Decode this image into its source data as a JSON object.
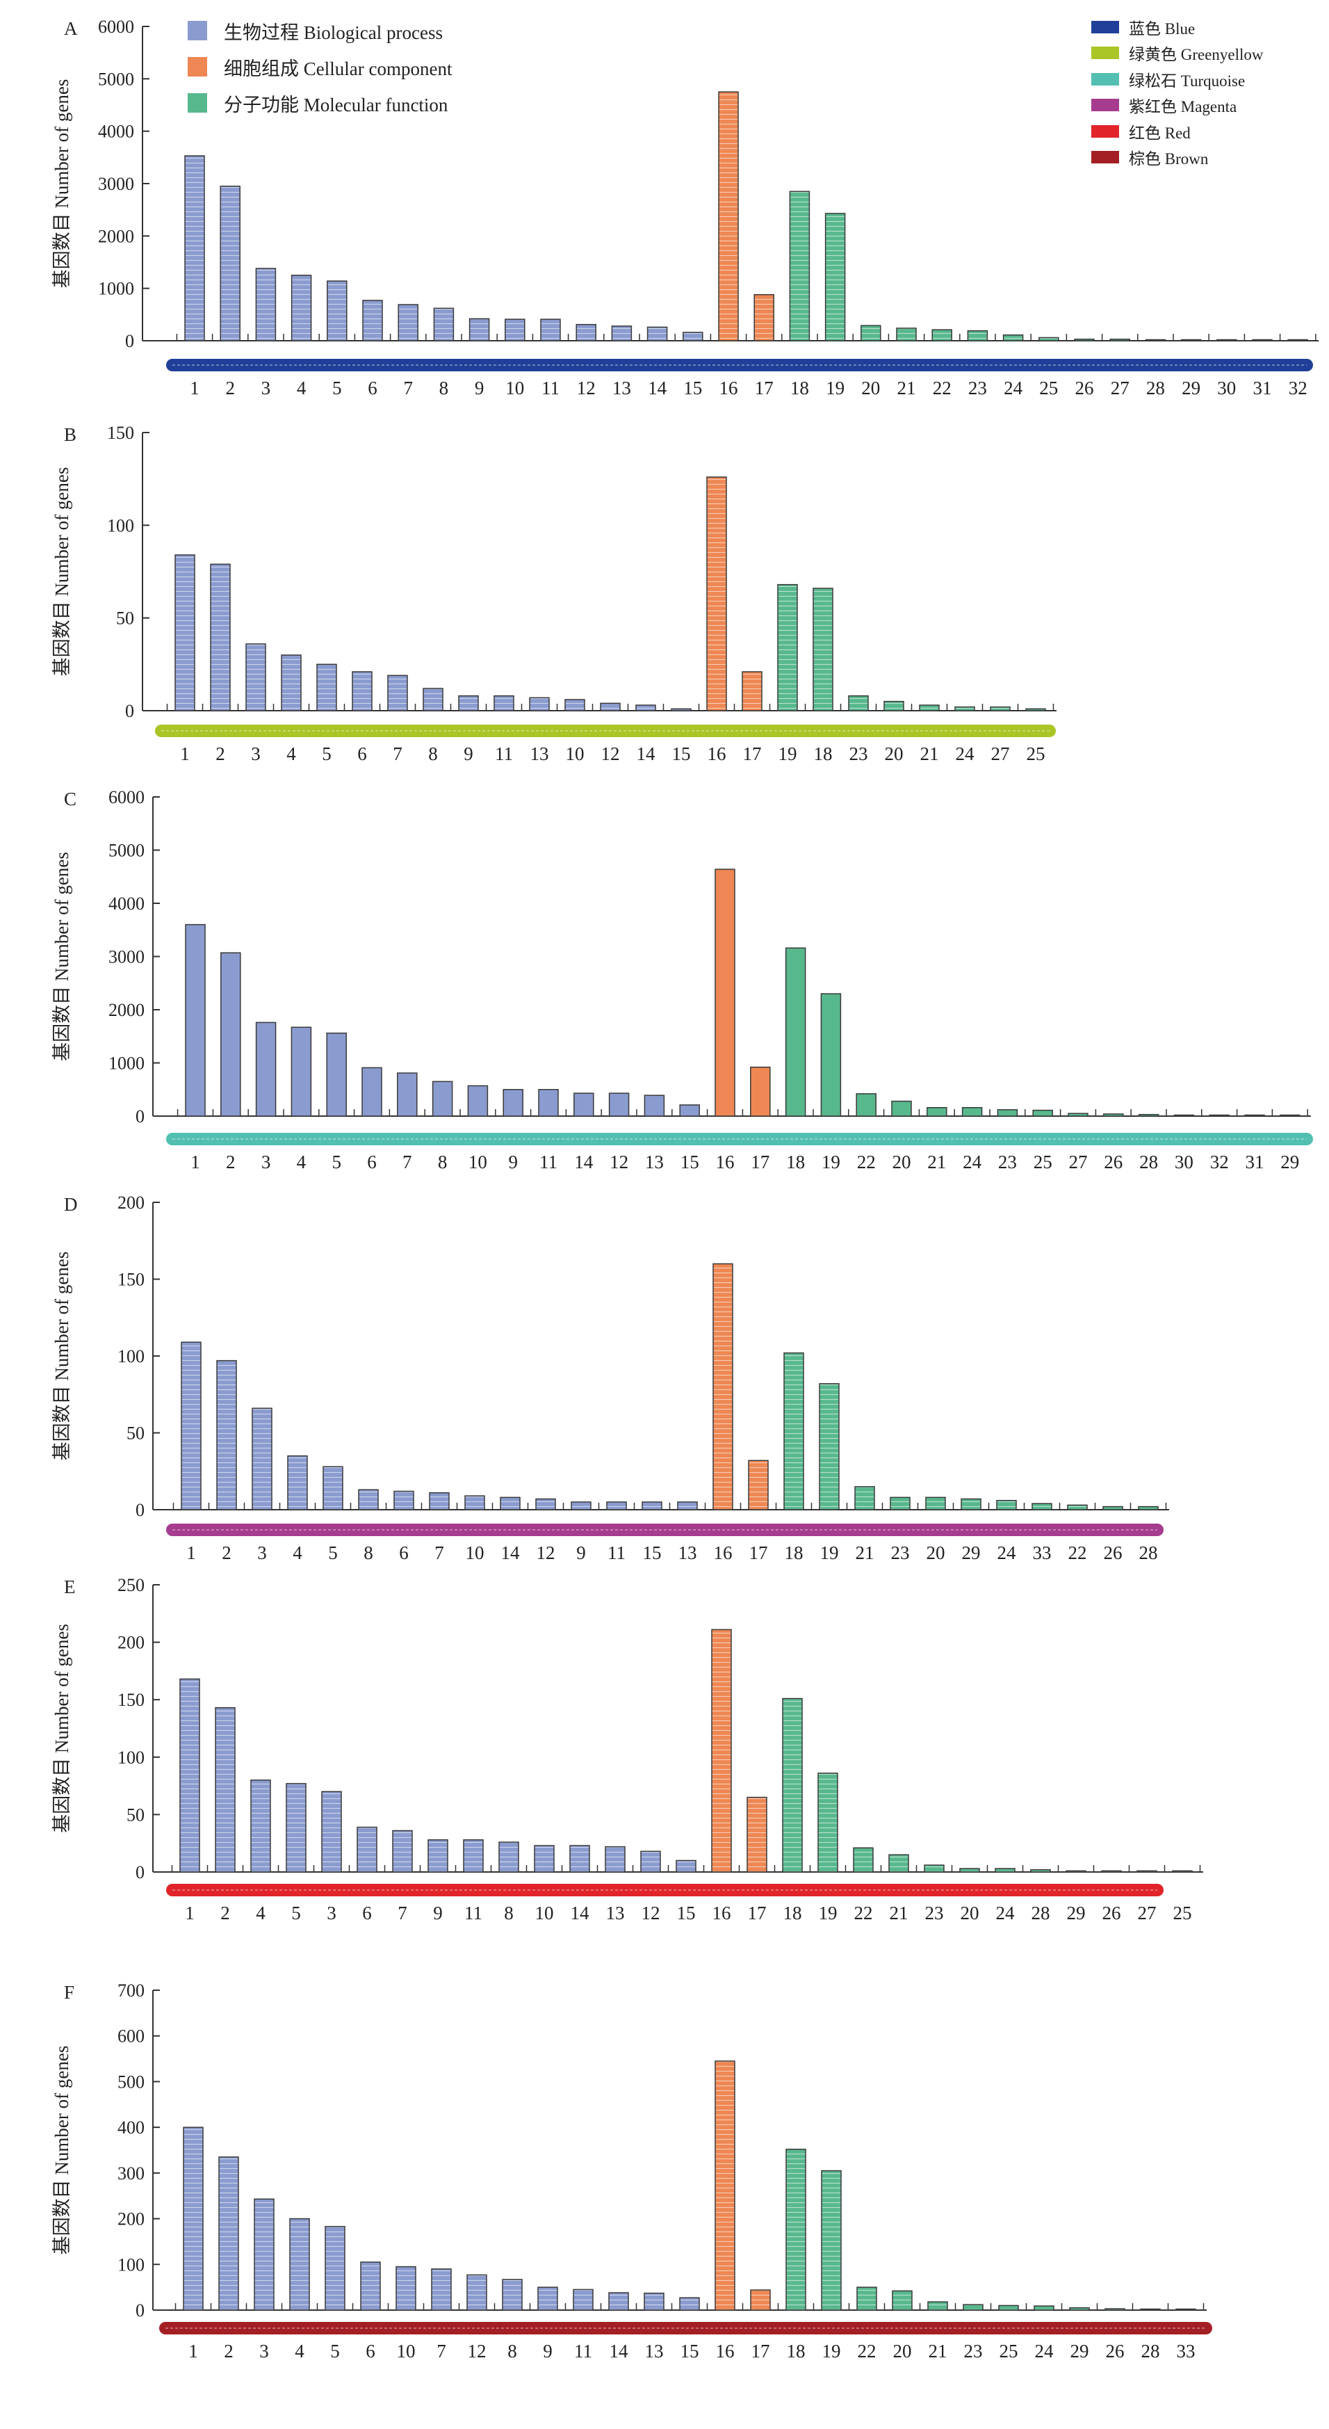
{
  "chart_data": [
    {
      "type": "bar",
      "panel_label": "A",
      "ylabel": "基因数目 Number of genes",
      "ylim": [
        0,
        6000
      ],
      "yticks": [
        0,
        1000,
        2000,
        3000,
        4000,
        5000,
        6000
      ],
      "module_color": "#1f3f98",
      "categories": [
        "1",
        "2",
        "3",
        "4",
        "5",
        "6",
        "7",
        "8",
        "9",
        "10",
        "11",
        "12",
        "13",
        "14",
        "15",
        "16",
        "17",
        "18",
        "19",
        "20",
        "21",
        "22",
        "23",
        "24",
        "25",
        "26",
        "27",
        "28",
        "29",
        "30",
        "31",
        "32"
      ],
      "values": [
        3530,
        2950,
        1380,
        1250,
        1140,
        770,
        690,
        620,
        420,
        410,
        410,
        310,
        280,
        260,
        160,
        4750,
        880,
        2850,
        2430,
        290,
        240,
        210,
        190,
        110,
        60,
        30,
        30,
        20,
        20,
        10,
        10,
        10
      ],
      "groups": [
        "bp",
        "bp",
        "bp",
        "bp",
        "bp",
        "bp",
        "bp",
        "bp",
        "bp",
        "bp",
        "bp",
        "bp",
        "bp",
        "bp",
        "bp",
        "cc",
        "cc",
        "mf",
        "mf",
        "mf",
        "mf",
        "mf",
        "mf",
        "mf",
        "mf",
        "mf",
        "mf",
        "mf",
        "mf",
        "mf",
        "mf",
        "mf"
      ],
      "hatched": true
    },
    {
      "type": "bar",
      "panel_label": "B",
      "ylabel": "基因数目 Number of genes",
      "ylim": [
        0,
        150
      ],
      "yticks": [
        0,
        50,
        100,
        150
      ],
      "module_color": "#a9c526",
      "categories": [
        "1",
        "2",
        "3",
        "4",
        "5",
        "6",
        "7",
        "8",
        "9",
        "11",
        "13",
        "10",
        "12",
        "14",
        "15",
        "16",
        "17",
        "19",
        "18",
        "23",
        "20",
        "21",
        "24",
        "27",
        "25"
      ],
      "values": [
        84,
        79,
        36,
        30,
        25,
        21,
        19,
        12,
        8,
        8,
        7,
        6,
        4,
        3,
        1,
        126,
        21,
        68,
        66,
        8,
        5,
        3,
        2,
        2,
        1
      ],
      "groups": [
        "bp",
        "bp",
        "bp",
        "bp",
        "bp",
        "bp",
        "bp",
        "bp",
        "bp",
        "bp",
        "bp",
        "bp",
        "bp",
        "bp",
        "bp",
        "cc",
        "cc",
        "mf",
        "mf",
        "mf",
        "mf",
        "mf",
        "mf",
        "mf",
        "mf"
      ],
      "hatched": true
    },
    {
      "type": "bar",
      "panel_label": "C",
      "ylabel": "基因数目 Number of genes",
      "ylim": [
        0,
        6000
      ],
      "yticks": [
        0,
        1000,
        2000,
        3000,
        4000,
        5000,
        6000
      ],
      "module_color": "#52bfb2",
      "categories": [
        "1",
        "2",
        "3",
        "4",
        "5",
        "6",
        "7",
        "8",
        "10",
        "9",
        "11",
        "14",
        "12",
        "13",
        "15",
        "16",
        "17",
        "18",
        "19",
        "22",
        "20",
        "21",
        "24",
        "23",
        "25",
        "27",
        "26",
        "28",
        "30",
        "32",
        "31",
        "29"
      ],
      "values": [
        3600,
        3070,
        1760,
        1670,
        1560,
        910,
        810,
        650,
        570,
        500,
        500,
        430,
        430,
        390,
        210,
        4640,
        920,
        3160,
        2300,
        420,
        280,
        160,
        160,
        120,
        110,
        50,
        40,
        30,
        10,
        10,
        10,
        10
      ],
      "groups": [
        "bp",
        "bp",
        "bp",
        "bp",
        "bp",
        "bp",
        "bp",
        "bp",
        "bp",
        "bp",
        "bp",
        "bp",
        "bp",
        "bp",
        "bp",
        "cc",
        "cc",
        "mf",
        "mf",
        "mf",
        "mf",
        "mf",
        "mf",
        "mf",
        "mf",
        "mf",
        "mf",
        "mf",
        "mf",
        "mf",
        "mf",
        "mf"
      ],
      "hatched": false
    },
    {
      "type": "bar",
      "panel_label": "D",
      "ylabel": "基因数目 Number of genes",
      "ylim": [
        0,
        200
      ],
      "yticks": [
        0,
        50,
        100,
        150,
        200
      ],
      "module_color": "#a63c8e",
      "categories": [
        "1",
        "2",
        "3",
        "4",
        "5",
        "8",
        "6",
        "7",
        "10",
        "14",
        "12",
        "9",
        "11",
        "15",
        "13",
        "16",
        "17",
        "18",
        "19",
        "21",
        "23",
        "20",
        "29",
        "24",
        "33",
        "22",
        "26",
        "28"
      ],
      "values": [
        109,
        97,
        66,
        35,
        28,
        13,
        12,
        11,
        9,
        8,
        7,
        5,
        5,
        5,
        5,
        160,
        32,
        102,
        82,
        15,
        8,
        8,
        7,
        6,
        4,
        3,
        2,
        2
      ],
      "groups": [
        "bp",
        "bp",
        "bp",
        "bp",
        "bp",
        "bp",
        "bp",
        "bp",
        "bp",
        "bp",
        "bp",
        "bp",
        "bp",
        "bp",
        "bp",
        "cc",
        "cc",
        "mf",
        "mf",
        "mf",
        "mf",
        "mf",
        "mf",
        "mf",
        "mf",
        "mf",
        "mf",
        "mf"
      ],
      "hatched": true
    },
    {
      "type": "bar",
      "panel_label": "E",
      "ylabel": "基因数目 Number of genes",
      "ylim": [
        0,
        250
      ],
      "yticks": [
        0,
        50,
        100,
        150,
        200,
        250
      ],
      "module_color": "#e0242a",
      "categories": [
        "1",
        "2",
        "4",
        "5",
        "3",
        "6",
        "7",
        "9",
        "11",
        "8",
        "10",
        "14",
        "13",
        "12",
        "15",
        "16",
        "17",
        "18",
        "19",
        "22",
        "21",
        "23",
        "20",
        "24",
        "28",
        "29",
        "26",
        "27",
        "25"
      ],
      "values": [
        168,
        143,
        80,
        77,
        70,
        39,
        36,
        28,
        28,
        26,
        23,
        23,
        22,
        18,
        10,
        211,
        65,
        151,
        86,
        21,
        15,
        6,
        3,
        3,
        2,
        1,
        1,
        1,
        1
      ],
      "groups": [
        "bp",
        "bp",
        "bp",
        "bp",
        "bp",
        "bp",
        "bp",
        "bp",
        "bp",
        "bp",
        "bp",
        "bp",
        "bp",
        "bp",
        "bp",
        "cc",
        "cc",
        "mf",
        "mf",
        "mf",
        "mf",
        "mf",
        "mf",
        "mf",
        "mf",
        "mf",
        "mf",
        "mf",
        "mf"
      ],
      "hatched": true
    },
    {
      "type": "bar",
      "panel_label": "F",
      "ylabel": "基因数目 Number of genes",
      "ylim": [
        0,
        700
      ],
      "yticks": [
        0,
        100,
        200,
        300,
        400,
        500,
        600,
        700
      ],
      "module_color": "#a31f24",
      "categories": [
        "1",
        "2",
        "3",
        "4",
        "5",
        "6",
        "10",
        "7",
        "12",
        "8",
        "9",
        "11",
        "14",
        "13",
        "15",
        "16",
        "17",
        "18",
        "19",
        "22",
        "20",
        "21",
        "23",
        "25",
        "24",
        "29",
        "26",
        "28",
        "33"
      ],
      "values": [
        400,
        335,
        243,
        200,
        183,
        105,
        95,
        90,
        77,
        67,
        50,
        45,
        38,
        37,
        27,
        545,
        44,
        352,
        305,
        50,
        42,
        18,
        12,
        10,
        9,
        5,
        3,
        2,
        1
      ],
      "groups": [
        "bp",
        "bp",
        "bp",
        "bp",
        "bp",
        "bp",
        "bp",
        "bp",
        "bp",
        "bp",
        "bp",
        "bp",
        "bp",
        "bp",
        "bp",
        "cc",
        "cc",
        "mf",
        "mf",
        "mf",
        "mf",
        "mf",
        "mf",
        "mf",
        "mf",
        "mf",
        "mf",
        "mf",
        "mf"
      ],
      "hatched": true
    }
  ],
  "legend": {
    "items": [
      {
        "label": "生物过程 Biological process",
        "color": "#8a9bcf",
        "key": "bp"
      },
      {
        "label": "细胞组成 Cellular component",
        "color": "#ee8753",
        "key": "cc"
      },
      {
        "label": "分子功能 Molecular function",
        "color": "#58b88d",
        "key": "mf"
      }
    ]
  },
  "module_legend": {
    "items": [
      {
        "label": "蓝色 Blue",
        "color": "#1f3f98"
      },
      {
        "label": "绿黄色 Greenyellow",
        "color": "#a9c526"
      },
      {
        "label": "绿松石 Turquoise",
        "color": "#52bfb2"
      },
      {
        "label": "紫红色 Magenta",
        "color": "#a63c8e"
      },
      {
        "label": "红色 Red",
        "color": "#e0242a"
      },
      {
        "label": "棕色 Brown",
        "color": "#a31f24"
      }
    ]
  }
}
